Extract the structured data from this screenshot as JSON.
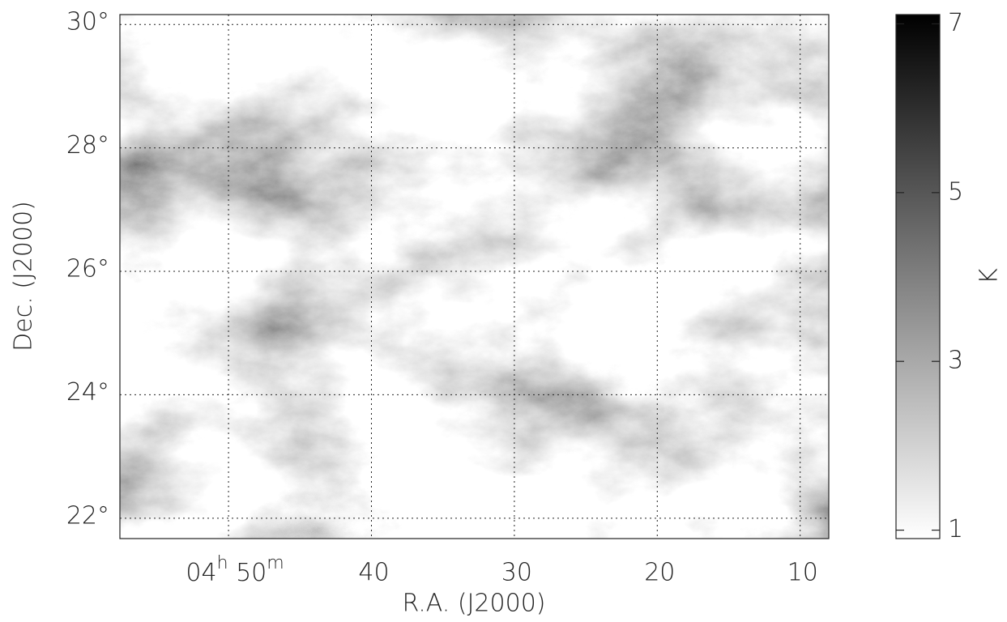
{
  "chart_data": {
    "type": "image",
    "xlabel": "R.A. (J2000)",
    "ylabel": "Dec. (J2000)",
    "xlim": [
      57.6,
      8.0
    ],
    "xticks": [
      {
        "value": 50,
        "label": "04h 50m"
      },
      40,
      30,
      20,
      10
    ],
    "ylim": [
      21.67,
      30.16
    ],
    "yticks": [
      {
        "value": 22,
        "label": "22°"
      },
      {
        "value": 24,
        "label": "24°"
      },
      {
        "value": 26,
        "label": "26°"
      },
      {
        "value": 28,
        "label": "28°"
      },
      {
        "value": 30,
        "label": "30°"
      }
    ],
    "grid": true,
    "colorbar": {
      "label": "K",
      "lim": [
        0.9,
        7.11
      ],
      "ticks": [
        1,
        3,
        5,
        7
      ]
    }
  }
}
